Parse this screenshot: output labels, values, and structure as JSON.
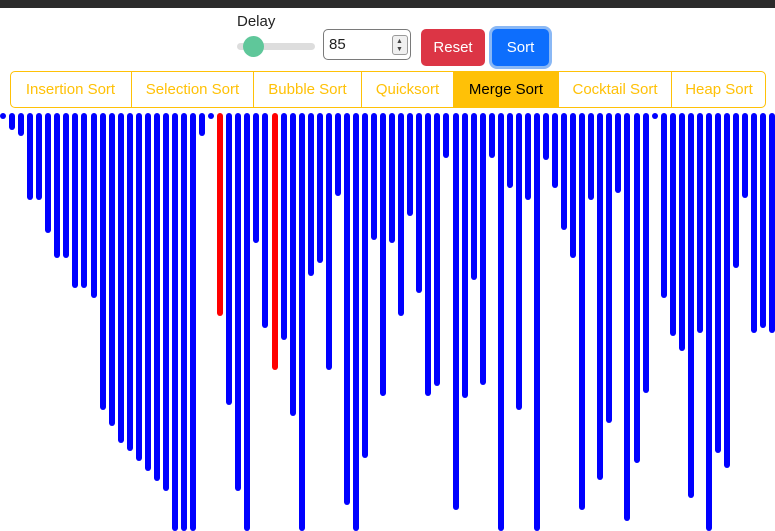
{
  "controls": {
    "delay_label": "Delay",
    "delay_slider_value": 10,
    "delay_input_value": "85",
    "reset_label": "Reset",
    "sort_label": "Sort"
  },
  "algorithms": [
    {
      "label": "Insertion Sort",
      "active": false
    },
    {
      "label": "Selection Sort",
      "active": false
    },
    {
      "label": "Bubble Sort",
      "active": false
    },
    {
      "label": "Quicksort",
      "active": false
    },
    {
      "label": "Merge Sort",
      "active": true
    },
    {
      "label": "Cocktail Sort",
      "active": false
    },
    {
      "label": "Heap Sort",
      "active": false
    }
  ],
  "colors": {
    "bar": "#0000ff",
    "highlight": "#ff0000",
    "accent": "#ffc107"
  },
  "bars": [
    {
      "v": 2
    },
    {
      "v": 17
    },
    {
      "v": 23
    },
    {
      "v": 87
    },
    {
      "v": 87
    },
    {
      "v": 120
    },
    {
      "v": 145
    },
    {
      "v": 145
    },
    {
      "v": 175
    },
    {
      "v": 175
    },
    {
      "v": 185
    },
    {
      "v": 297
    },
    {
      "v": 313
    },
    {
      "v": 330
    },
    {
      "v": 338
    },
    {
      "v": 348
    },
    {
      "v": 358
    },
    {
      "v": 368
    },
    {
      "v": 378
    },
    {
      "v": 418
    },
    {
      "v": 418
    },
    {
      "v": 418
    },
    {
      "v": 23
    },
    {
      "v": 2
    },
    {
      "v": 203,
      "active": true
    },
    {
      "v": 292
    },
    {
      "v": 378
    },
    {
      "v": 418
    },
    {
      "v": 130
    },
    {
      "v": 215
    },
    {
      "v": 257,
      "active": true
    },
    {
      "v": 227
    },
    {
      "v": 303
    },
    {
      "v": 418
    },
    {
      "v": 163
    },
    {
      "v": 150
    },
    {
      "v": 257
    },
    {
      "v": 83
    },
    {
      "v": 392
    },
    {
      "v": 418
    },
    {
      "v": 345
    },
    {
      "v": 127
    },
    {
      "v": 283
    },
    {
      "v": 130
    },
    {
      "v": 203
    },
    {
      "v": 103
    },
    {
      "v": 180
    },
    {
      "v": 283
    },
    {
      "v": 273
    },
    {
      "v": 45
    },
    {
      "v": 397
    },
    {
      "v": 285
    },
    {
      "v": 167
    },
    {
      "v": 272
    },
    {
      "v": 45
    },
    {
      "v": 418
    },
    {
      "v": 75
    },
    {
      "v": 297
    },
    {
      "v": 87
    },
    {
      "v": 418
    },
    {
      "v": 47
    },
    {
      "v": 75
    },
    {
      "v": 117
    },
    {
      "v": 145
    },
    {
      "v": 397
    },
    {
      "v": 87
    },
    {
      "v": 367
    },
    {
      "v": 310
    },
    {
      "v": 80
    },
    {
      "v": 408
    },
    {
      "v": 350
    },
    {
      "v": 280
    },
    {
      "v": 2
    },
    {
      "v": 185
    },
    {
      "v": 223
    },
    {
      "v": 238
    },
    {
      "v": 385
    },
    {
      "v": 220
    },
    {
      "v": 418
    },
    {
      "v": 340
    },
    {
      "v": 355
    },
    {
      "v": 155
    },
    {
      "v": 85
    },
    {
      "v": 220
    },
    {
      "v": 215
    },
    {
      "v": 220
    },
    {
      "v": 220
    }
  ]
}
